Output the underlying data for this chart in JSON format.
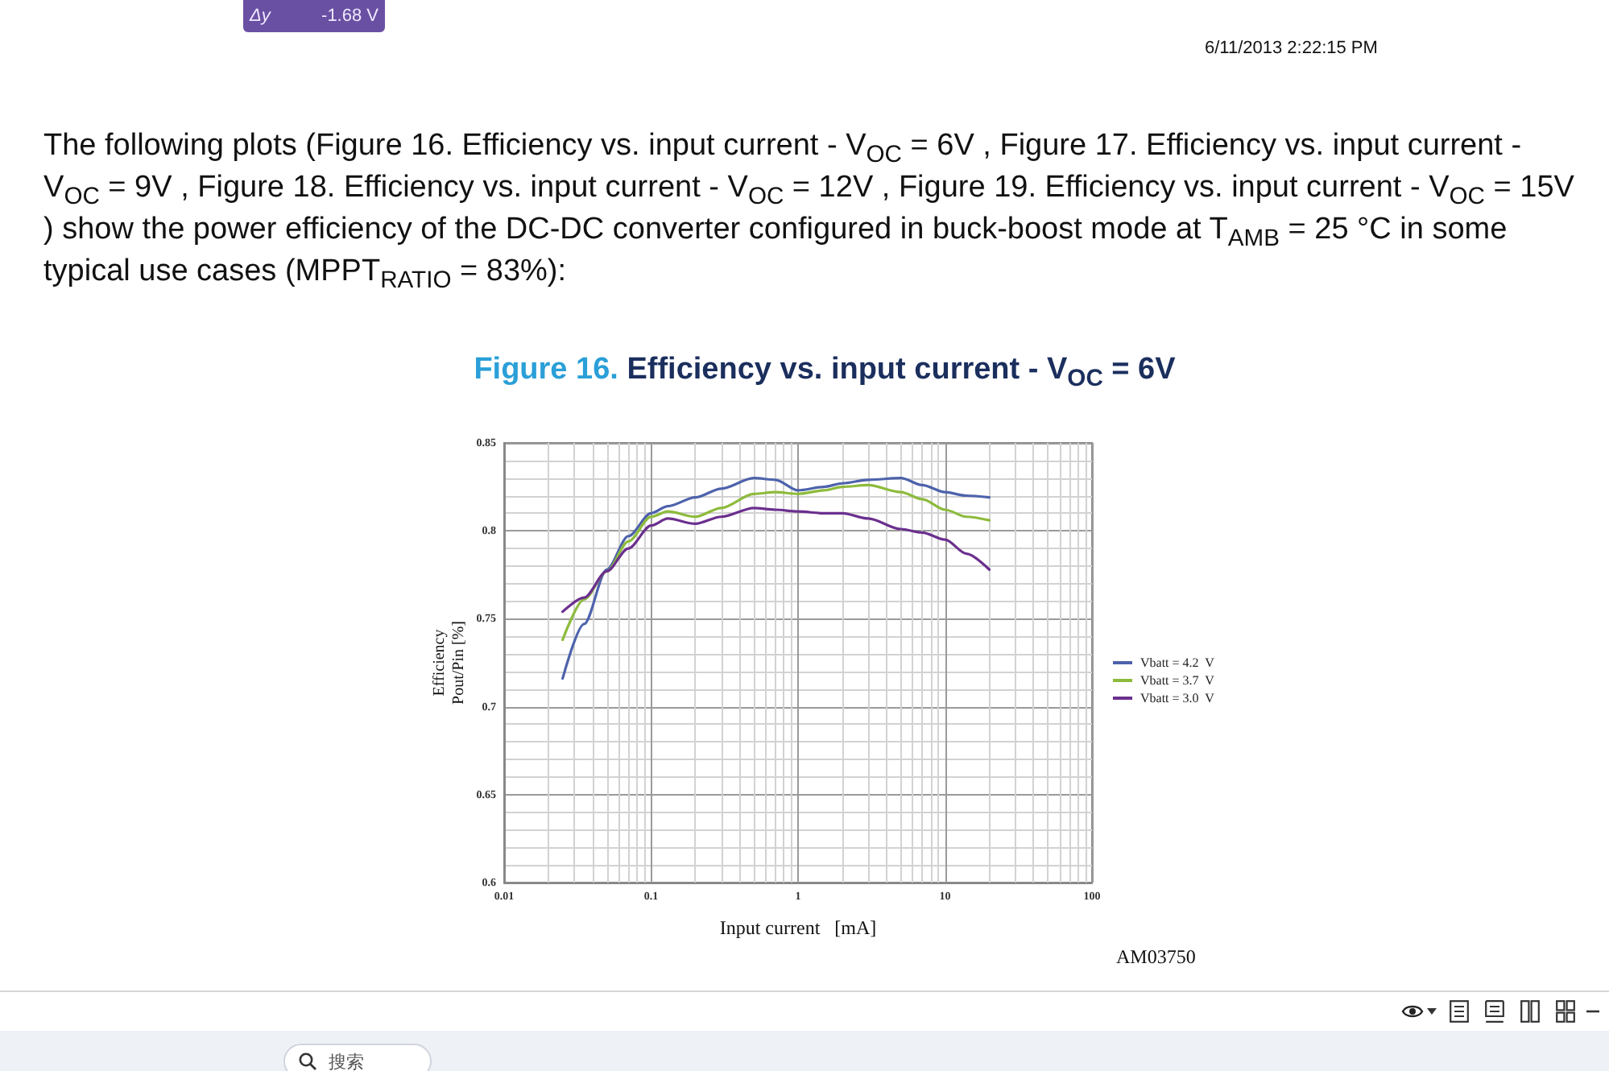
{
  "chart_data": {
    "type": "line",
    "title": "Figure 16. Efficiency vs. input current - V$_{OC}$ = 6V",
    "xlabel": "Input current   [mA]",
    "ylabel": "Efficiency\nPout/Pin [%]",
    "x": [
      0.025,
      0.035,
      0.05,
      0.07,
      0.1,
      0.13,
      0.2,
      0.3,
      0.5,
      0.7,
      1,
      1.5,
      2,
      3,
      5,
      7,
      10,
      14,
      20
    ],
    "series": [
      {
        "name": "Vbatt = 4.2  V",
        "color": "#4d62ab",
        "values": [
          0.716,
          0.747,
          0.778,
          0.797,
          0.81,
          0.814,
          0.819,
          0.824,
          0.83,
          0.829,
          0.823,
          0.825,
          0.827,
          0.829,
          0.83,
          0.826,
          0.822,
          0.82,
          0.819
        ]
      },
      {
        "name": "Vbatt = 3.7  V",
        "color": "#8dbb3c",
        "values": [
          0.738,
          0.761,
          0.777,
          0.794,
          0.808,
          0.811,
          0.808,
          0.813,
          0.821,
          0.822,
          0.821,
          0.823,
          0.825,
          0.826,
          0.822,
          0.818,
          0.812,
          0.808,
          0.806
        ]
      },
      {
        "name": "Vbatt = 3.0  V",
        "color": "#6b2f8e",
        "values": [
          0.754,
          0.762,
          0.777,
          0.79,
          0.803,
          0.807,
          0.804,
          0.808,
          0.813,
          0.812,
          0.811,
          0.81,
          0.81,
          0.807,
          0.801,
          0.799,
          0.795,
          0.787,
          0.778
        ]
      }
    ],
    "xlim": [
      0.01,
      100
    ],
    "xticks": [
      0.01,
      0.1,
      1,
      10,
      100
    ],
    "ylim": [
      0.6,
      0.85
    ],
    "yticks": [
      0.6,
      0.65,
      0.7,
      0.75,
      0.8,
      0.85
    ],
    "log": "x",
    "grid": true,
    "legend": "right",
    "marker": "none",
    "line_style": "solid",
    "annotations": [
      "Δy",
      "-1.68 V",
      "6/11/2013 2:22:15 PM",
      "The following plots (Figure 16. Efficiency vs. input current - V$_{OC}$ = 6V , Figure 17. Efficiency vs. input current - V$_{OC}$ = 9V , Figure 18. Efficiency vs. input current - V$_{OC}$ = 12V , Figure 19. Efficiency vs. input current - V$_{OC}$ = 15V ) show the power efficiency of the DC-DC converter configured in buck-boost mode at T$_{AMB}$ = 25 °C in some typical use cases (MPPT$_{RATIO}$ = 83%):",
      "AM03750",
      "搜索"
    ]
  }
}
